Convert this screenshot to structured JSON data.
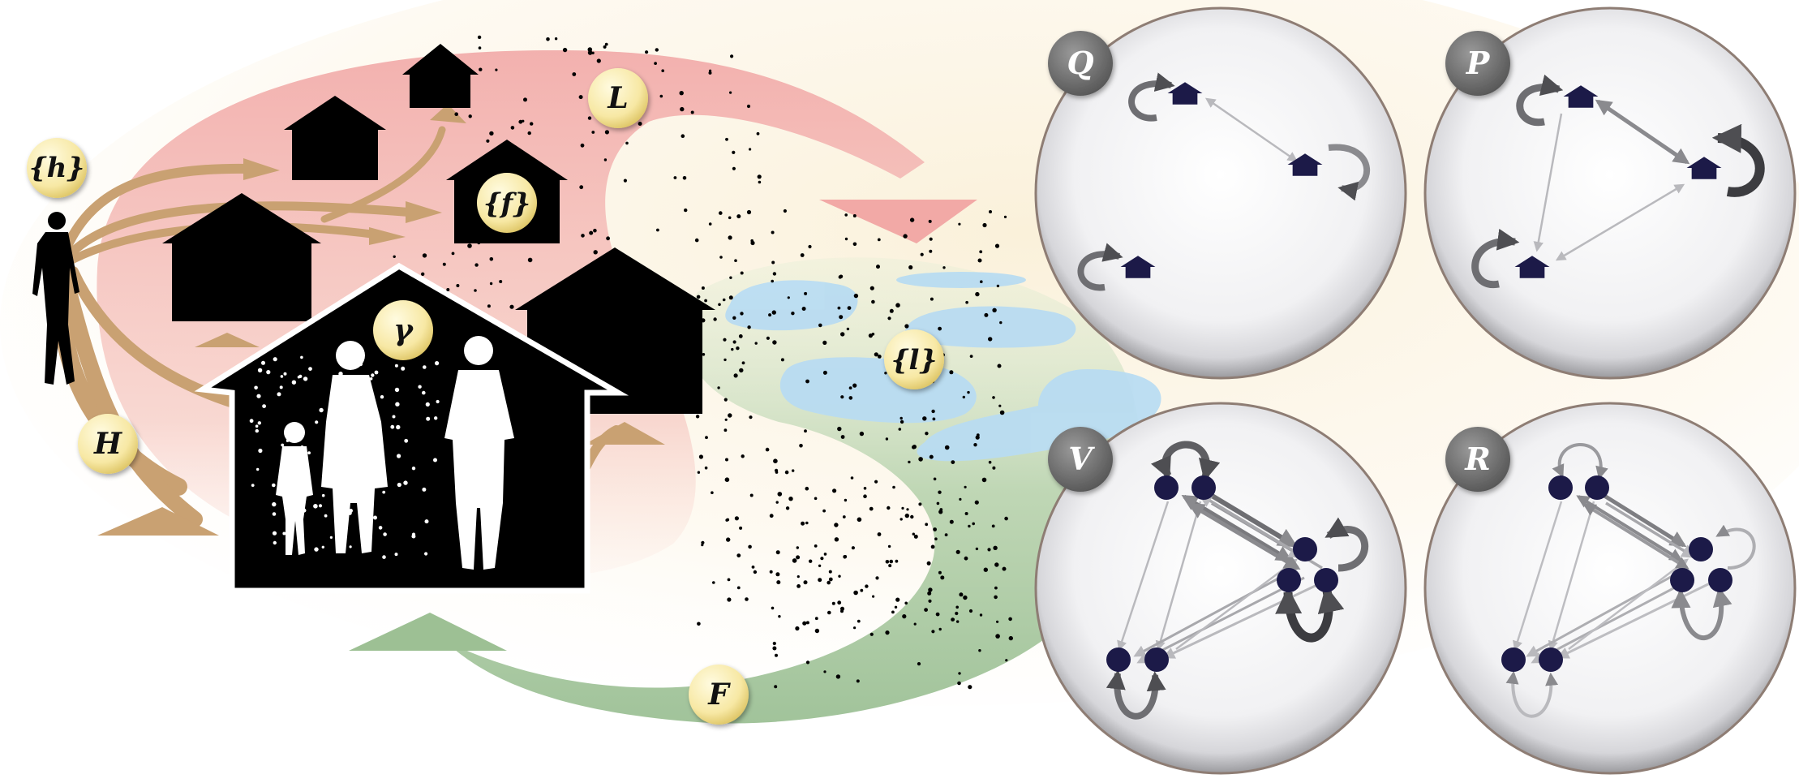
{
  "labels": {
    "h_set": "{h}",
    "f_set": "{f}",
    "gamma": "γ",
    "L": "L",
    "l_set": "{l}",
    "H": "H",
    "F": "F"
  },
  "panels": [
    {
      "id": "Q",
      "label": "Q"
    },
    {
      "id": "P",
      "label": "P"
    },
    {
      "id": "V",
      "label": "V"
    },
    {
      "id": "R",
      "label": "R"
    }
  ],
  "colors": {
    "loop_red": "#f3b3b0",
    "loop_green": "#a9c9a2",
    "arrow_tan": "#c9a172",
    "badge_fill": "#f8eba8",
    "water": "#b9dcf2",
    "silhouette": "#000000",
    "node": "#1c1a48",
    "panel_label_bg": "#6c6c6c"
  },
  "icons": [
    "person-silhouette-icon",
    "house-icon",
    "water-puddle-icon",
    "node-icon"
  ]
}
